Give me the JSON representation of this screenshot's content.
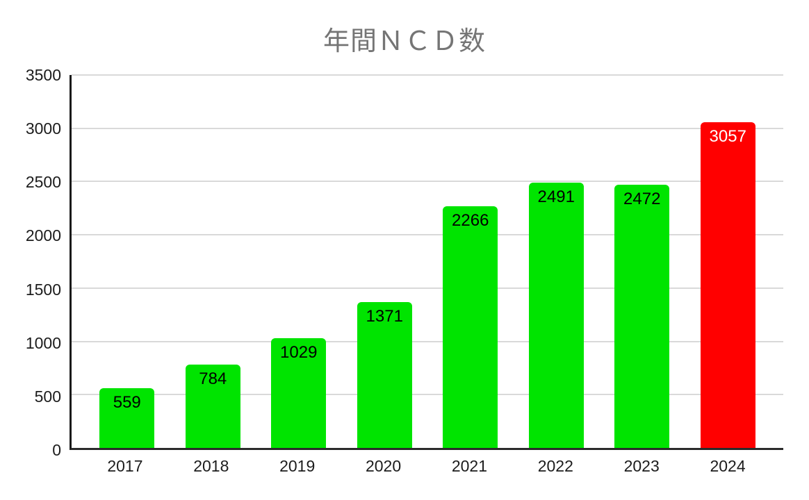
{
  "chart_data": {
    "type": "bar",
    "title": "年間ＮＣＤ数",
    "categories": [
      "2017",
      "2018",
      "2019",
      "2020",
      "2021",
      "2022",
      "2023",
      "2024"
    ],
    "values": [
      559,
      784,
      1029,
      1371,
      2266,
      2491,
      2472,
      3057
    ],
    "highlight_index": 7,
    "xlabel": "",
    "ylabel": "",
    "ylim": [
      0,
      3500
    ],
    "ytick_step": 500,
    "yticks_desc": [
      "3500",
      "3000",
      "2500",
      "2000",
      "1500",
      "1000",
      "500",
      "0"
    ],
    "grid": "horizontal",
    "legend": "none",
    "colors": {
      "bar": "#00e400",
      "highlight": "#ff0000",
      "bar_label": "#000000",
      "highlight_label": "#ffffff",
      "grid": "#d9d9d9",
      "axis": "#1a1a1a",
      "tick_label": "#1c1c1c",
      "title": "#757575"
    }
  }
}
